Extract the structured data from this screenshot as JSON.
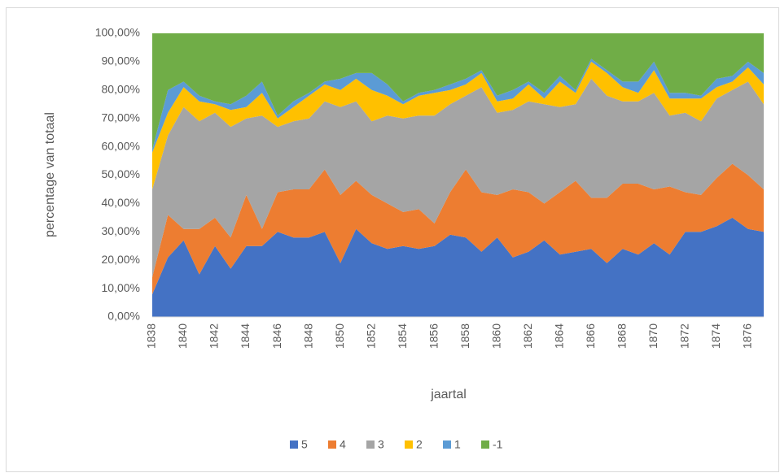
{
  "chart_data": {
    "type": "stacked_area",
    "x_label": "jaartal",
    "y_label": "percentage van totaal",
    "categories": [
      "1838",
      null,
      "1840",
      null,
      "1842",
      null,
      "1844",
      null,
      "1846",
      null,
      "1848",
      null,
      "1850",
      null,
      "1852",
      null,
      "1854",
      null,
      "1856",
      null,
      "1858",
      null,
      "1860",
      null,
      "1862",
      null,
      "1864",
      null,
      "1866",
      null,
      "1868",
      null,
      "1870",
      null,
      "1872",
      null,
      "1874",
      null,
      "1876",
      null
    ],
    "ylim": [
      0,
      100
    ],
    "yticks": [
      {
        "value": 0,
        "label": "0,00%"
      },
      {
        "value": 10,
        "label": "10,00%"
      },
      {
        "value": 20,
        "label": "20,00%"
      },
      {
        "value": 30,
        "label": "30,00%"
      },
      {
        "value": 40,
        "label": "40,00%"
      },
      {
        "value": 50,
        "label": "50,00%"
      },
      {
        "value": 60,
        "label": "60,00%"
      },
      {
        "value": 70,
        "label": "70,00%"
      },
      {
        "value": 80,
        "label": "80,00%"
      },
      {
        "value": 90,
        "label": "90,00%"
      },
      {
        "value": 100,
        "label": "100,00%"
      }
    ],
    "legend": "bottom",
    "series": [
      {
        "name": "5",
        "color": "#4472c4",
        "values": [
          8,
          21,
          27,
          15,
          25,
          17,
          25,
          25,
          30,
          28,
          28,
          30,
          19,
          31,
          26,
          24,
          25,
          24,
          25,
          29,
          28,
          23,
          28,
          21,
          23,
          27,
          22,
          23,
          24,
          19,
          24,
          22,
          26,
          22,
          30,
          30,
          32,
          35,
          31,
          30
        ]
      },
      {
        "name": "4",
        "color": "#ed7d31",
        "values": [
          6,
          15,
          4,
          16,
          10,
          11,
          18,
          6,
          14,
          17,
          17,
          22,
          24,
          17,
          17,
          16,
          12,
          14,
          8,
          15,
          24,
          21,
          15,
          24,
          21,
          13,
          22,
          25,
          18,
          23,
          23,
          25,
          19,
          24,
          14,
          13,
          17,
          19,
          19,
          15
        ]
      },
      {
        "name": "3",
        "color": "#a5a5a5",
        "values": [
          31,
          28,
          43,
          38,
          37,
          39,
          27,
          40,
          23,
          24,
          25,
          24,
          31,
          28,
          26,
          31,
          33,
          33,
          38,
          31,
          26,
          37,
          29,
          28,
          32,
          35,
          30,
          27,
          42,
          36,
          29,
          29,
          34,
          25,
          28,
          26,
          28,
          26,
          33,
          30
        ]
      },
      {
        "name": "2",
        "color": "#ffc000",
        "values": [
          13,
          8,
          7,
          7,
          3,
          6,
          4,
          8,
          3,
          5,
          8,
          6,
          6,
          8,
          11,
          7,
          5,
          7,
          8,
          5,
          4,
          5,
          4,
          4,
          6,
          2,
          9,
          4,
          6,
          8,
          5,
          3,
          8,
          6,
          5,
          8,
          4,
          3,
          5,
          7
        ]
      },
      {
        "name": "1",
        "color": "#5b9bd5",
        "values": [
          1,
          8,
          2,
          2,
          1,
          2,
          4,
          4,
          1,
          2,
          1,
          1,
          4,
          2,
          6,
          4,
          1,
          1,
          1,
          2,
          2,
          1,
          2,
          3,
          1,
          2,
          2,
          1,
          1,
          1,
          2,
          4,
          3,
          2,
          2,
          1,
          3,
          2,
          2,
          4
        ]
      },
      {
        "name": "-1",
        "color": "#70ad47",
        "values": [
          41,
          20,
          17,
          22,
          24,
          25,
          22,
          17,
          29,
          24,
          21,
          17,
          16,
          14,
          14,
          18,
          24,
          21,
          20,
          18,
          16,
          13,
          22,
          20,
          17,
          21,
          15,
          20,
          9,
          13,
          17,
          17,
          10,
          21,
          21,
          22,
          16,
          15,
          10,
          14
        ]
      }
    ]
  }
}
